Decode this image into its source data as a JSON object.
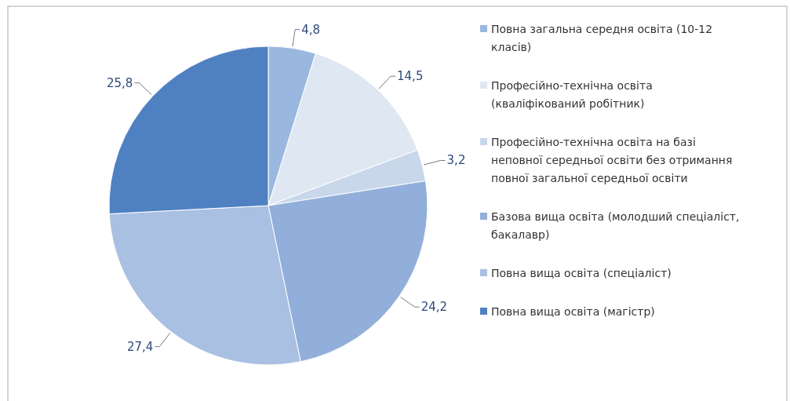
{
  "chart_data": {
    "type": "pie",
    "categories": [
      "Повна загальна середня освіта (10-12 класів)",
      "Професійно-технічна освіта (кваліфікований робітник)",
      "Професійно-технічна освіта на базі неповної середньої освіти без отримання повної загальної середньої освіти",
      "Базова вища освіта (молодший спеціаліст, бакалавр)",
      "Повна вища освіта (спеціаліст)",
      "Повна вища освіта (магістр)"
    ],
    "values": [
      4.8,
      14.5,
      3.2,
      24.2,
      27.4,
      25.8
    ],
    "value_labels": [
      "4,8",
      "14,5",
      "3,2",
      "24,2",
      "27,4",
      "25,8"
    ],
    "colors": [
      "#9ab8df",
      "#dfe7f3",
      "#c9d7eb",
      "#91afda",
      "#a9c0e2",
      "#4f81c2"
    ],
    "legend": "right"
  }
}
